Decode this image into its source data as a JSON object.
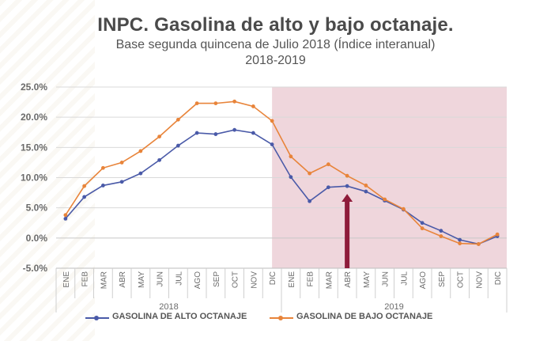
{
  "header": {
    "title": "INPC. Gasolina de alto y bajo octanaje.",
    "subtitle": "Base segunda quincena de Julio 2018 (Índice interanual)",
    "subtitle2": "2018-2019"
  },
  "chart_data": {
    "type": "line",
    "categories": [
      "ENE",
      "FEB",
      "MAR",
      "ABR",
      "MAY",
      "JUN",
      "JUL",
      "AGO",
      "SEP",
      "OCT",
      "NOV",
      "DIC",
      "ENE",
      "FEB",
      "MAR",
      "ABR",
      "MAY",
      "JUN",
      "JUL",
      "AGO",
      "SEP",
      "OCT",
      "NOV",
      "DIC"
    ],
    "year_labels": [
      "2018",
      "2019"
    ],
    "y_ticks": [
      "25.0%",
      "20.0%",
      "15.0%",
      "10.0%",
      "5.0%",
      "0.0%",
      "-5.0%"
    ],
    "ylim": [
      -5,
      25
    ],
    "grid": true,
    "legend_position": "bottom",
    "highlight_region": {
      "from_category_index": 11,
      "to_category_index": 23,
      "color": "#efd6dc"
    },
    "annotation_arrow": {
      "category_index": 15,
      "color": "#8e1b3a"
    },
    "series": [
      {
        "name": "GASOLINA DE ALTO OCTANAJE",
        "color": "#4a5aa8",
        "values": [
          3.2,
          6.8,
          8.7,
          9.3,
          10.7,
          12.9,
          15.3,
          17.4,
          17.2,
          17.9,
          17.4,
          15.5,
          10.1,
          6.1,
          8.4,
          8.6,
          7.7,
          6.2,
          4.7,
          2.5,
          1.2,
          -0.3,
          -1.0,
          0.3
        ]
      },
      {
        "name": "GASOLINA DE BAJO OCTANAJE",
        "color": "#e8843a",
        "values": [
          3.8,
          8.6,
          11.6,
          12.5,
          14.4,
          16.8,
          19.6,
          22.3,
          22.3,
          22.6,
          21.8,
          19.4,
          13.5,
          10.7,
          12.2,
          10.3,
          8.7,
          6.4,
          4.8,
          1.6,
          0.3,
          -0.9,
          -1.0,
          0.6
        ]
      }
    ]
  }
}
